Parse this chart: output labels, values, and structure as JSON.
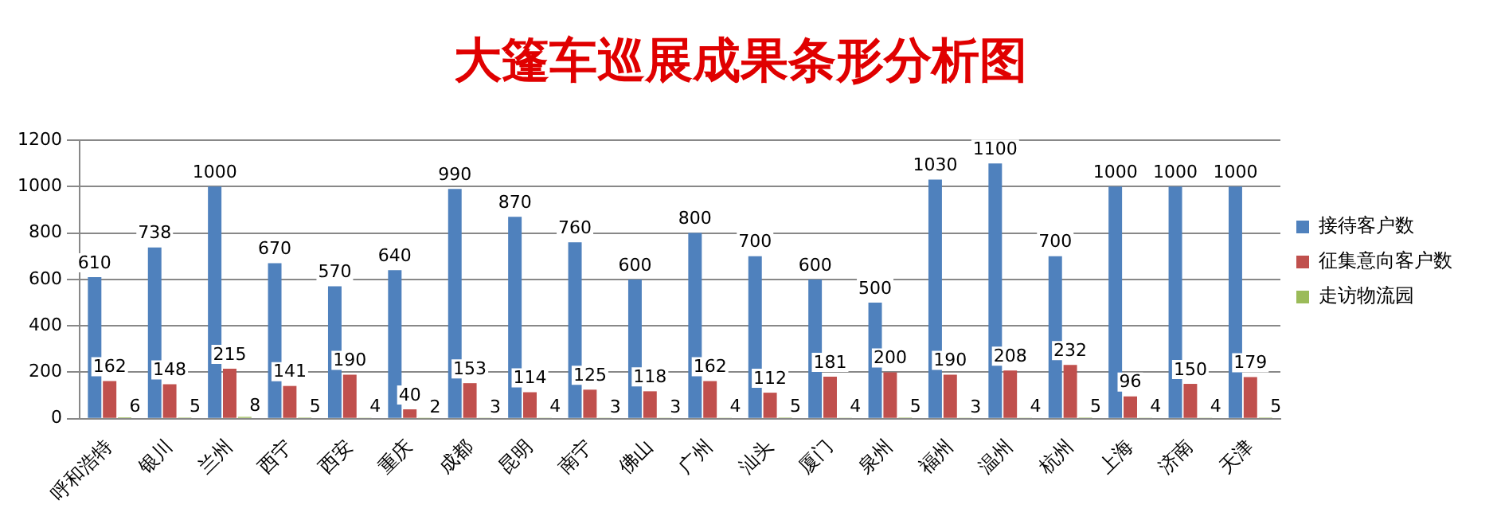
{
  "chart_data": {
    "type": "bar",
    "title": "大篷车巡展成果条形分析图",
    "categories": [
      "呼和浩特",
      "银川",
      "兰州",
      "西宁",
      "西安",
      "重庆",
      "成都",
      "昆明",
      "南宁",
      "佛山",
      "广州",
      "汕头",
      "厦门",
      "泉州",
      "福州",
      "温州",
      "杭州",
      "上海",
      "济南",
      "天津"
    ],
    "series": [
      {
        "name": "接待客户数",
        "color": "#4f81bd",
        "values": [
          610,
          738,
          1000,
          670,
          570,
          640,
          990,
          870,
          760,
          600,
          800,
          700,
          600,
          500,
          1030,
          1100,
          700,
          1000,
          1000,
          1000
        ]
      },
      {
        "name": "征集意向客户数",
        "color": "#c0504d",
        "values": [
          162,
          148,
          215,
          141,
          190,
          40,
          153,
          114,
          125,
          118,
          162,
          112,
          181,
          200,
          190,
          208,
          232,
          96,
          150,
          179
        ]
      },
      {
        "name": "走访物流园",
        "color": "#9bbb59",
        "values": [
          6,
          5,
          8,
          5,
          4,
          2,
          3,
          4,
          3,
          3,
          4,
          5,
          4,
          5,
          3,
          4,
          5,
          4,
          4,
          5
        ]
      }
    ],
    "ylim": [
      0,
      1200
    ],
    "yticks": [
      0,
      200,
      400,
      600,
      800,
      1000,
      1200
    ],
    "grid": "y",
    "legend": "right",
    "data_labels": true
  }
}
